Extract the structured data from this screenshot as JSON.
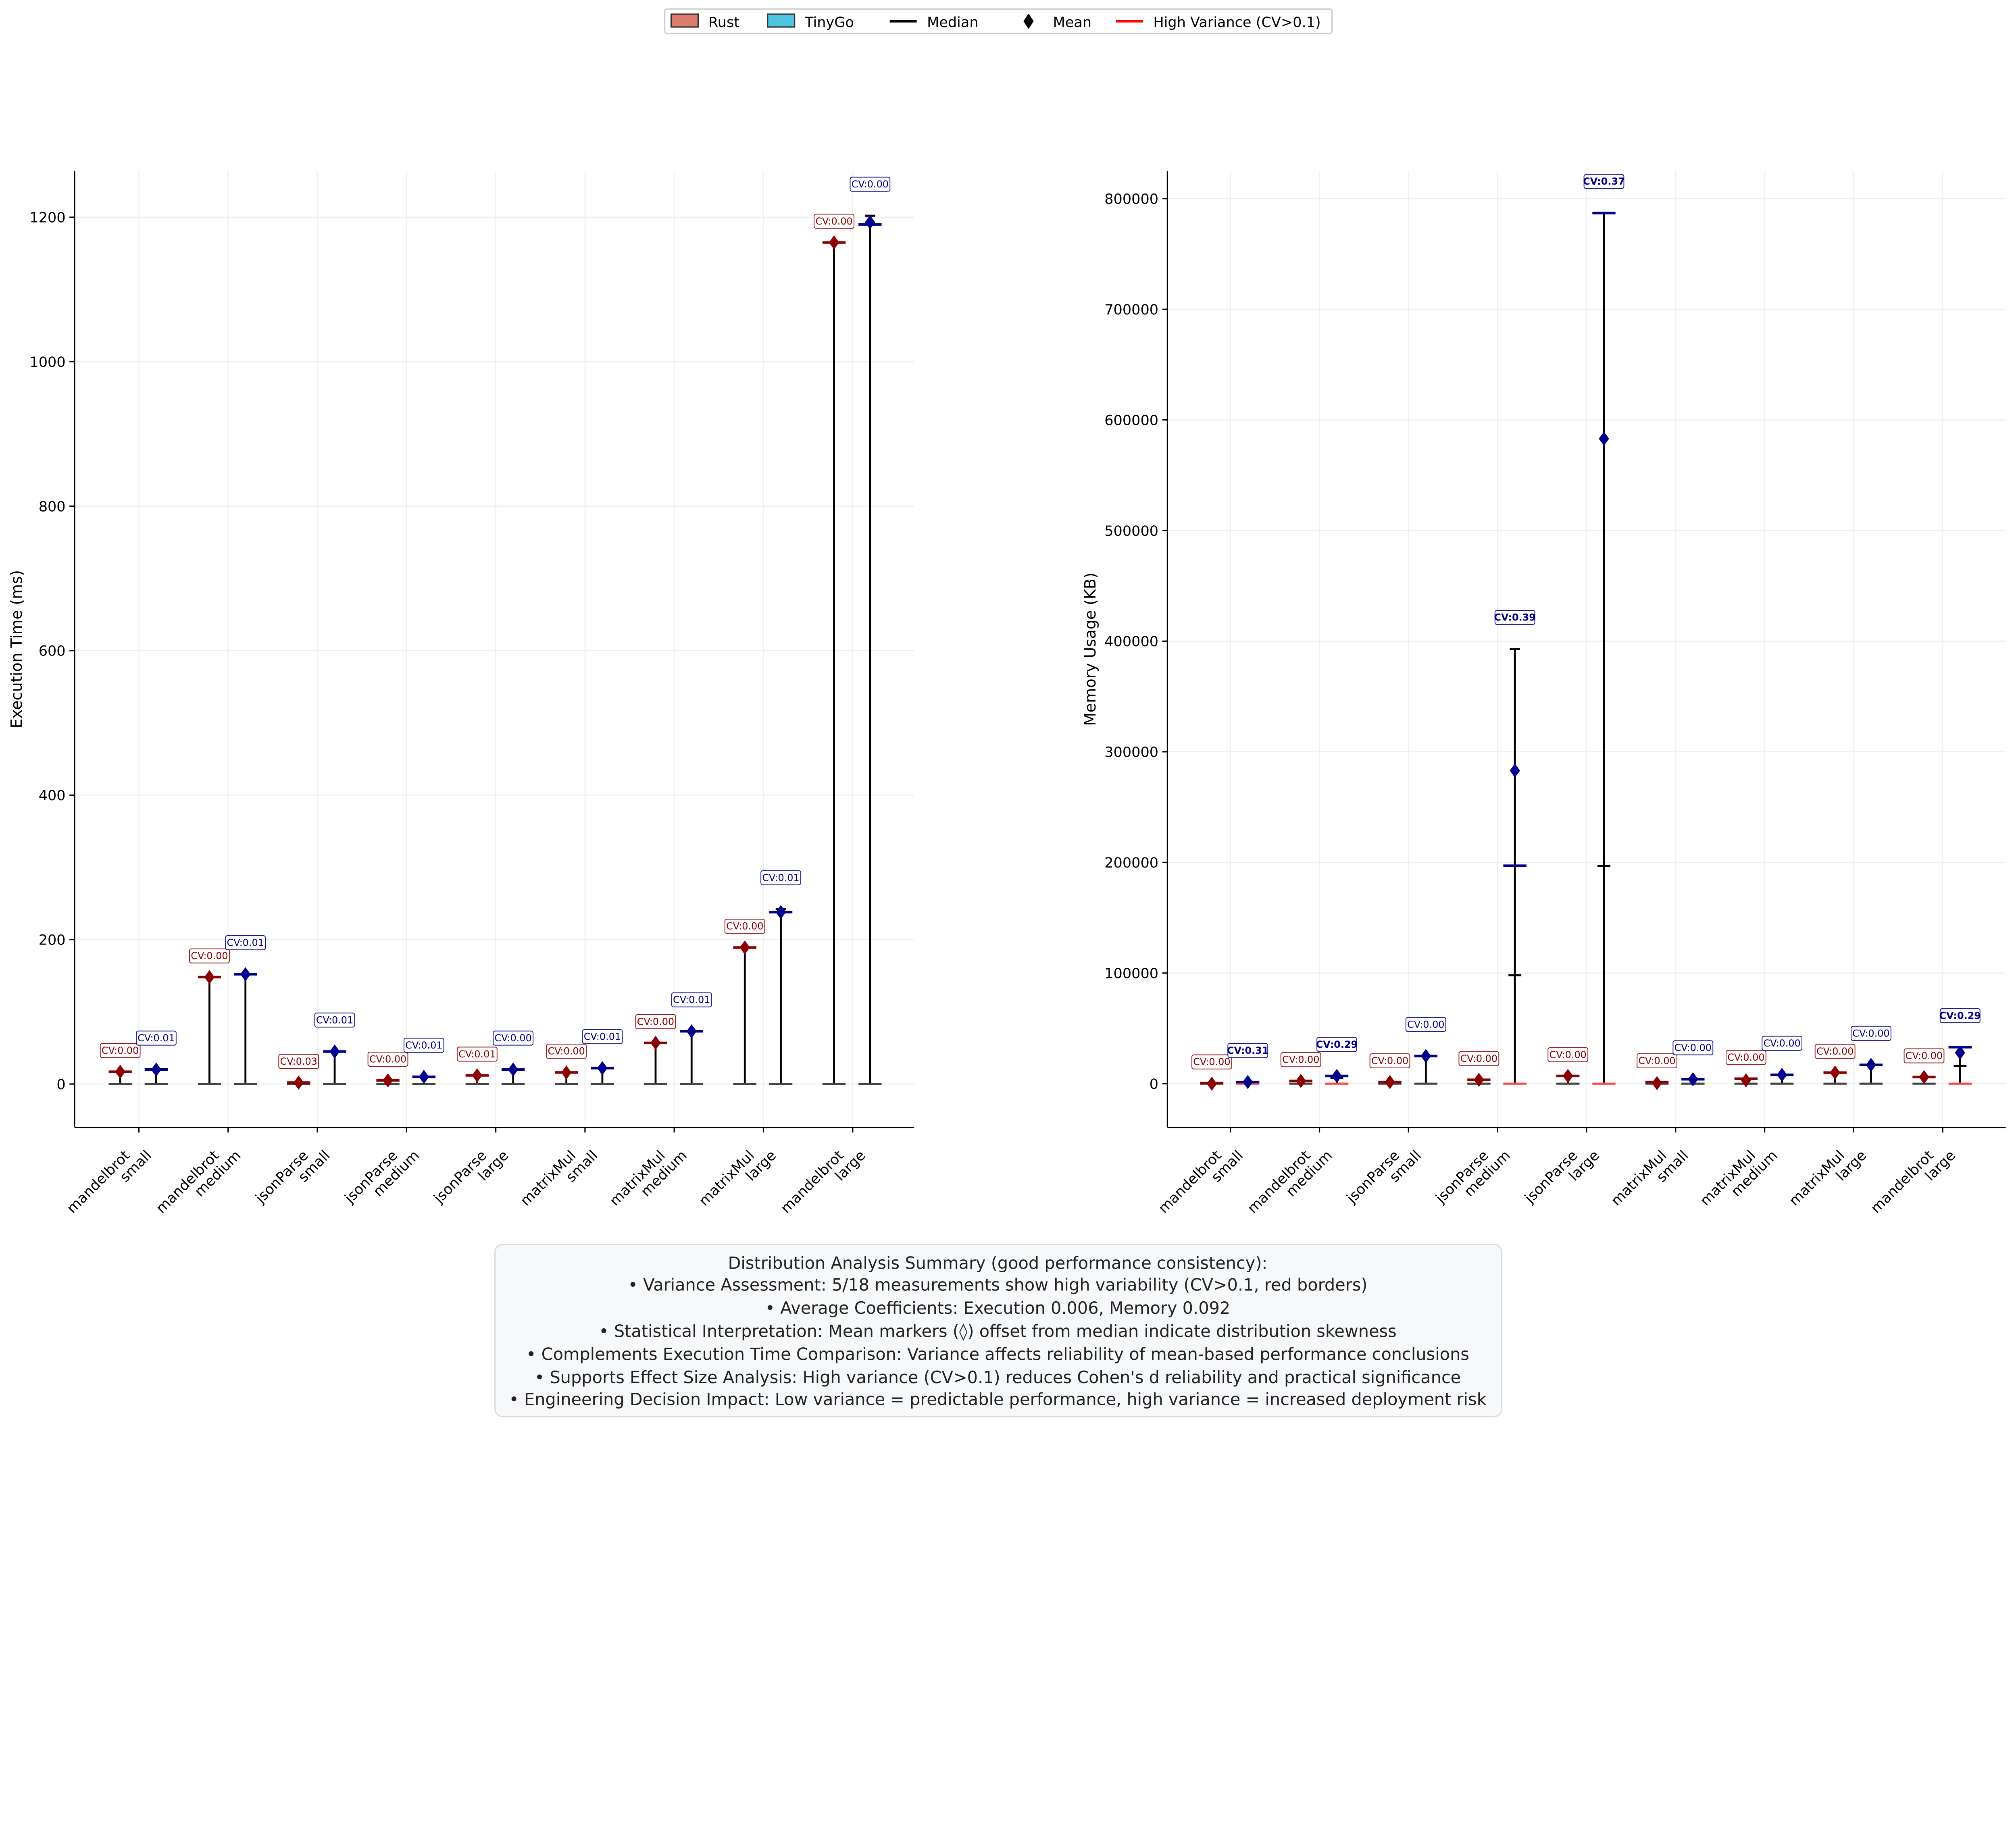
{
  "legend": {
    "placement": "top-center",
    "items": [
      {
        "label": "Rust",
        "kind": "patch",
        "color": "#dd7c6c"
      },
      {
        "label": "TinyGo",
        "kind": "patch",
        "color": "#4ec6e2"
      },
      {
        "label": "Median",
        "kind": "line",
        "color": "#000000"
      },
      {
        "label": "Mean",
        "kind": "diamond",
        "color": "#000000"
      },
      {
        "label": "High Variance (CV>0.1)",
        "kind": "line",
        "color": "#ff0000"
      }
    ]
  },
  "colors": {
    "rust": "#8b0000",
    "tinygo": "#00008b",
    "high_variance": "#ff4444",
    "cap": "#444444"
  },
  "chart_data": [
    {
      "type": "box",
      "ylabel": "Execution Time (ms)",
      "ylim": [
        -60,
        1264
      ],
      "yticks": [
        0,
        200,
        400,
        600,
        800,
        1000,
        1200
      ],
      "grid": true,
      "categories": [
        [
          "mandelbrot",
          "small"
        ],
        [
          "mandelbrot",
          "medium"
        ],
        [
          "jsonParse",
          "small"
        ],
        [
          "jsonParse",
          "medium"
        ],
        [
          "jsonParse",
          "large"
        ],
        [
          "matrixMul",
          "small"
        ],
        [
          "matrixMul",
          "medium"
        ],
        [
          "matrixMul",
          "large"
        ],
        [
          "mandelbrot",
          "large"
        ]
      ],
      "series": [
        {
          "name": "Rust",
          "mean": [
            17,
            148,
            2,
            5,
            12,
            16,
            57,
            189,
            1165
          ],
          "median": [
            17,
            148,
            2,
            5,
            12,
            16,
            57,
            189,
            1165
          ],
          "max": [
            17,
            148,
            2,
            5,
            12,
            16,
            57,
            189,
            1165
          ],
          "cv": [
            "CV:0.00",
            "CV:0.00",
            "CV:0.03",
            "CV:0.00",
            "CV:0.01",
            "CV:0.00",
            "CV:0.00",
            "CV:0.00",
            "CV:0.00"
          ],
          "high": [
            false,
            false,
            false,
            false,
            false,
            false,
            false,
            false,
            false
          ]
        },
        {
          "name": "TinyGo",
          "mean": [
            20,
            152,
            45,
            10,
            20,
            22,
            73,
            238,
            1193
          ],
          "median": [
            20,
            152,
            45,
            10,
            20,
            22,
            73,
            238,
            1190
          ],
          "max": [
            20,
            152,
            45,
            10,
            20,
            22,
            73,
            242,
            1202
          ],
          "cv": [
            "CV:0.01",
            "CV:0.01",
            "CV:0.01",
            "CV:0.01",
            "CV:0.00",
            "CV:0.01",
            "CV:0.01",
            "CV:0.01",
            "CV:0.00"
          ],
          "high": [
            false,
            false,
            false,
            false,
            false,
            false,
            false,
            false,
            false
          ]
        }
      ]
    },
    {
      "type": "box",
      "ylabel": "Memory Usage (KB)",
      "ylim": [
        -39500,
        825000
      ],
      "yticks": [
        0,
        100000,
        200000,
        300000,
        400000,
        500000,
        600000,
        700000,
        800000
      ],
      "grid": true,
      "categories": [
        [
          "mandelbrot",
          "small"
        ],
        [
          "mandelbrot",
          "medium"
        ],
        [
          "jsonParse",
          "small"
        ],
        [
          "jsonParse",
          "medium"
        ],
        [
          "jsonParse",
          "large"
        ],
        [
          "matrixMul",
          "small"
        ],
        [
          "matrixMul",
          "medium"
        ],
        [
          "matrixMul",
          "large"
        ],
        [
          "mandelbrot",
          "large"
        ]
      ],
      "series": [
        {
          "name": "Rust",
          "mean": [
            0,
            2500,
            1500,
            3500,
            7000,
            500,
            3000,
            10000,
            6000
          ],
          "median": [
            500,
            2500,
            1500,
            3500,
            7000,
            1500,
            4500,
            10000,
            6000
          ],
          "max": [
            500,
            2500,
            1500,
            3500,
            7000,
            1500,
            4500,
            10000,
            6000
          ],
          "cv": [
            "CV:0.00",
            "CV:0.00",
            "CV:0.00",
            "CV:0.00",
            "CV:0.00",
            "CV:0.00",
            "CV:0.00",
            "CV:0.00",
            "CV:0.00"
          ],
          "high": [
            false,
            false,
            false,
            false,
            false,
            false,
            false,
            false,
            false
          ]
        },
        {
          "name": "TinyGo",
          "mean": [
            1500,
            7000,
            25000,
            283000,
            583000,
            4000,
            8000,
            17000,
            28000
          ],
          "median": [
            1500,
            7000,
            25000,
            197000,
            787000,
            4000,
            8000,
            17000,
            33000
          ],
          "max": [
            1500,
            7000,
            25000,
            393000,
            787000,
            4000,
            8000,
            17000,
            33000
          ],
          "inner": [
            null,
            5000,
            null,
            98000,
            197000,
            null,
            null,
            null,
            16000
          ],
          "cv": [
            "CV:0.31",
            "CV:0.29",
            "CV:0.00",
            "CV:0.39",
            "CV:0.37",
            "CV:0.00",
            "CV:0.00",
            "CV:0.00",
            "CV:0.29"
          ],
          "high": [
            true,
            true,
            false,
            true,
            true,
            false,
            false,
            false,
            true
          ]
        }
      ]
    }
  ],
  "summary": {
    "title": "Distribution Analysis Summary (good performance consistency):",
    "lines": [
      "• Variance Assessment: 5/18 measurements show high variability (CV>0.1, red borders)",
      "• Average Coefficients: Execution 0.006, Memory 0.092",
      "• Statistical Interpretation: Mean markers (◊) offset from median indicate distribution skewness",
      "• Complements Execution Time Comparison: Variance affects reliability of mean-based performance conclusions",
      "• Supports Effect Size Analysis: High variance (CV>0.1) reduces Cohen's d reliability and practical significance",
      "• Engineering Decision Impact: Low variance = predictable performance, high variance = increased deployment risk"
    ]
  }
}
